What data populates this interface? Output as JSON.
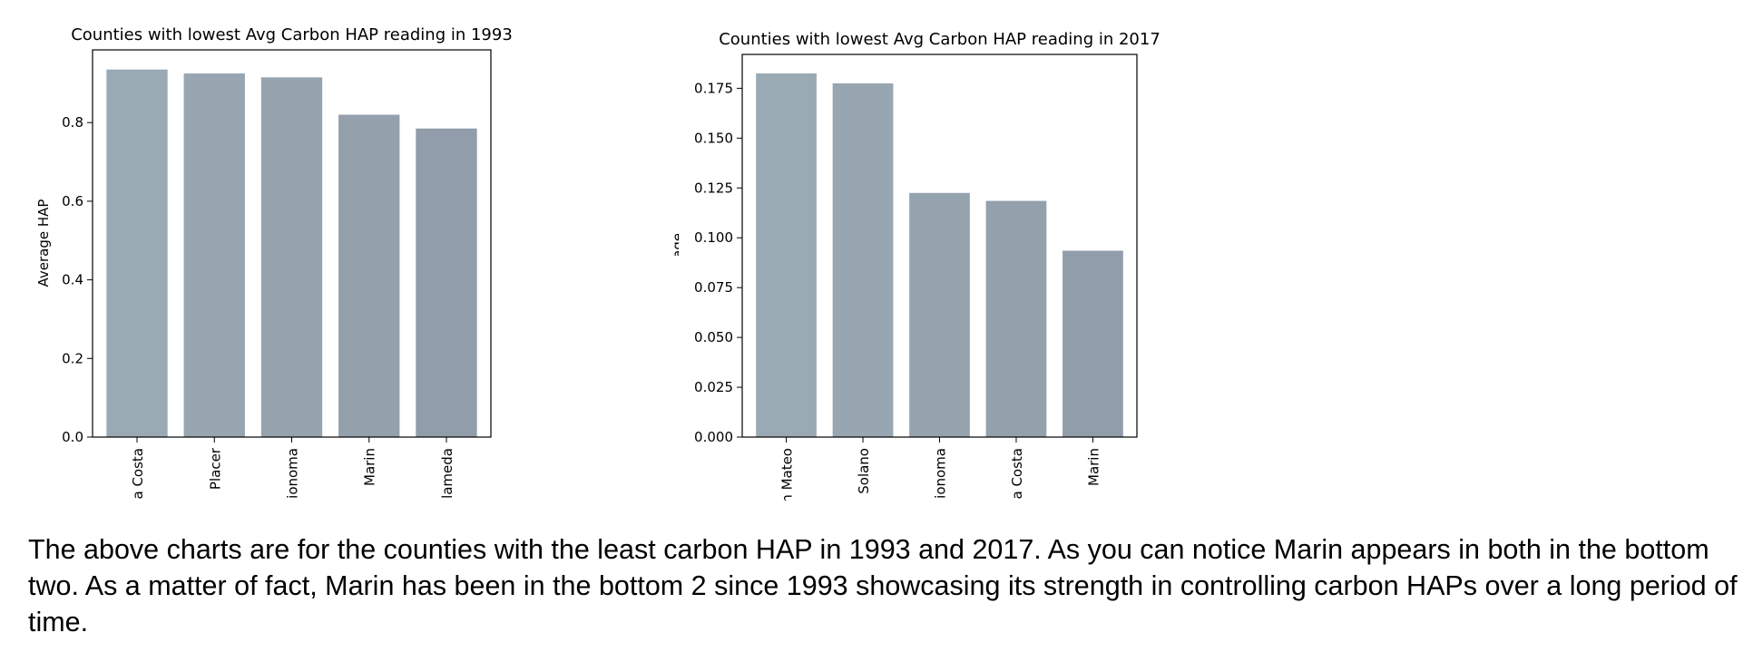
{
  "chart_data": [
    {
      "type": "bar",
      "title": "Counties with lowest Avg Carbon HAP reading in 1993",
      "xlabel": "",
      "ylabel": "Average HAP",
      "categories": [
        "a Costa",
        "Placer",
        "ionoma",
        "Marin",
        "lameda"
      ],
      "values": [
        0.935,
        0.925,
        0.915,
        0.82,
        0.785
      ],
      "ylim": [
        0,
        0.985
      ],
      "yticks": [
        "0.0",
        "0.2",
        "0.4",
        "0.6",
        "0.8"
      ],
      "bar_colors": [
        "#9aaab4",
        "#97a6b1",
        "#95a3af",
        "#94a0ac",
        "#919daa"
      ],
      "grid": false,
      "legend": "none"
    },
    {
      "type": "bar",
      "title": "Counties with lowest Avg Carbon HAP reading in 2017",
      "xlabel": "",
      "ylabel": "Average HAP",
      "categories": [
        "n Mateo",
        "Solano",
        "ionoma",
        "a Costa",
        "Marin"
      ],
      "values": [
        0.1825,
        0.1775,
        0.1225,
        0.1185,
        0.0935
      ],
      "ylim": [
        0,
        0.192
      ],
      "yticks": [
        "0.000",
        "0.025",
        "0.050",
        "0.075",
        "0.100",
        "0.125",
        "0.150",
        "0.175"
      ],
      "bar_colors": [
        "#9aaab4",
        "#97a6b1",
        "#95a3af",
        "#94a0ac",
        "#919daa"
      ],
      "grid": false,
      "legend": "none"
    }
  ],
  "caption": "The above charts are for the counties with the least carbon HAP in 1993 and 2017. As you can notice Marin appears in both in the bottom two. As a matter of fact, Marin has been in the bottom 2 since 1993 showcasing its strength in controlling carbon HAPs over a long period of time."
}
